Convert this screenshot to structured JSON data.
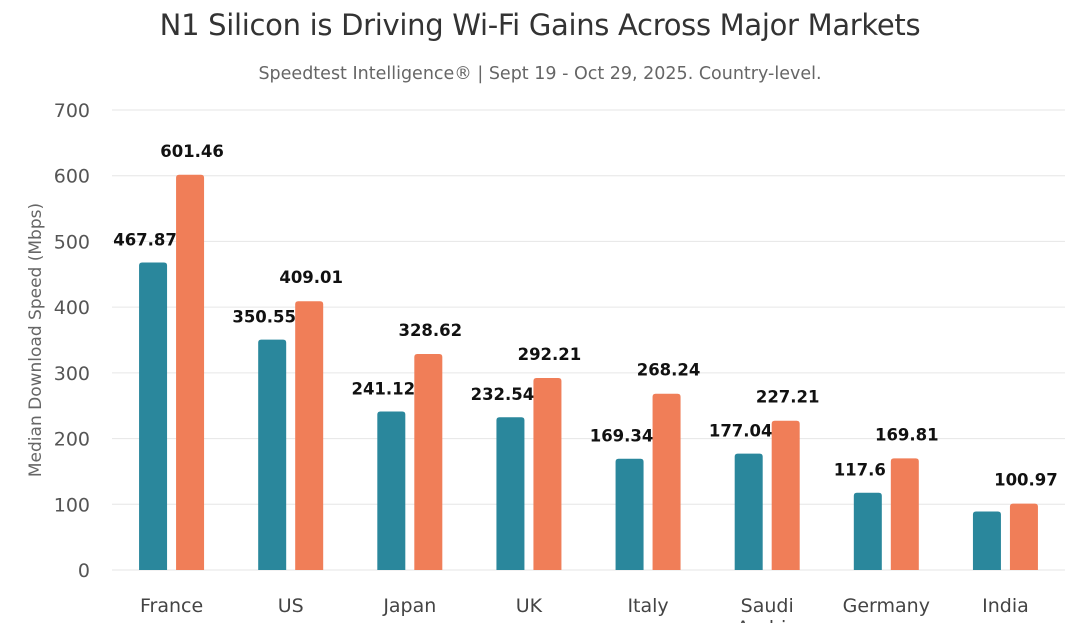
{
  "title": "N1 Silicon is Driving Wi-Fi Gains Across Major Markets",
  "subtitle": "Speedtest Intelligence® | Sept 19 - Oct 29, 2025. Country-level.",
  "chart_data": {
    "type": "bar",
    "title": "N1 Silicon is Driving Wi-Fi Gains Across Major Markets",
    "subtitle": "Speedtest Intelligence® | Sept 19 - Oct 29, 2025. Country-level.",
    "xlabel": "",
    "ylabel": "Median Download Speed (Mbps)",
    "ylim": [
      0,
      700
    ],
    "yticks": [
      0,
      100,
      200,
      300,
      400,
      500,
      600,
      700
    ],
    "grid": true,
    "legend": "none",
    "categories": [
      "France",
      "US",
      "Japan",
      "UK",
      "Italy",
      "Saudi Arabia",
      "Germany",
      "India"
    ],
    "series": [
      {
        "color": "#2a879c",
        "values": [
          467.87,
          350.55,
          241.12,
          232.54,
          169.34,
          177.04,
          117.6,
          89
        ],
        "labels": [
          "467.87",
          "350.55",
          "241.12",
          "232.54",
          "169.34",
          "177.04",
          "117.6",
          null
        ]
      },
      {
        "color": "#f07e58",
        "values": [
          601.46,
          409.01,
          328.62,
          292.21,
          268.24,
          227.21,
          169.81,
          100.97
        ],
        "labels": [
          "601.46",
          "409.01",
          "328.62",
          "292.21",
          "268.24",
          "227.21",
          "169.81",
          "100.97"
        ]
      }
    ]
  }
}
